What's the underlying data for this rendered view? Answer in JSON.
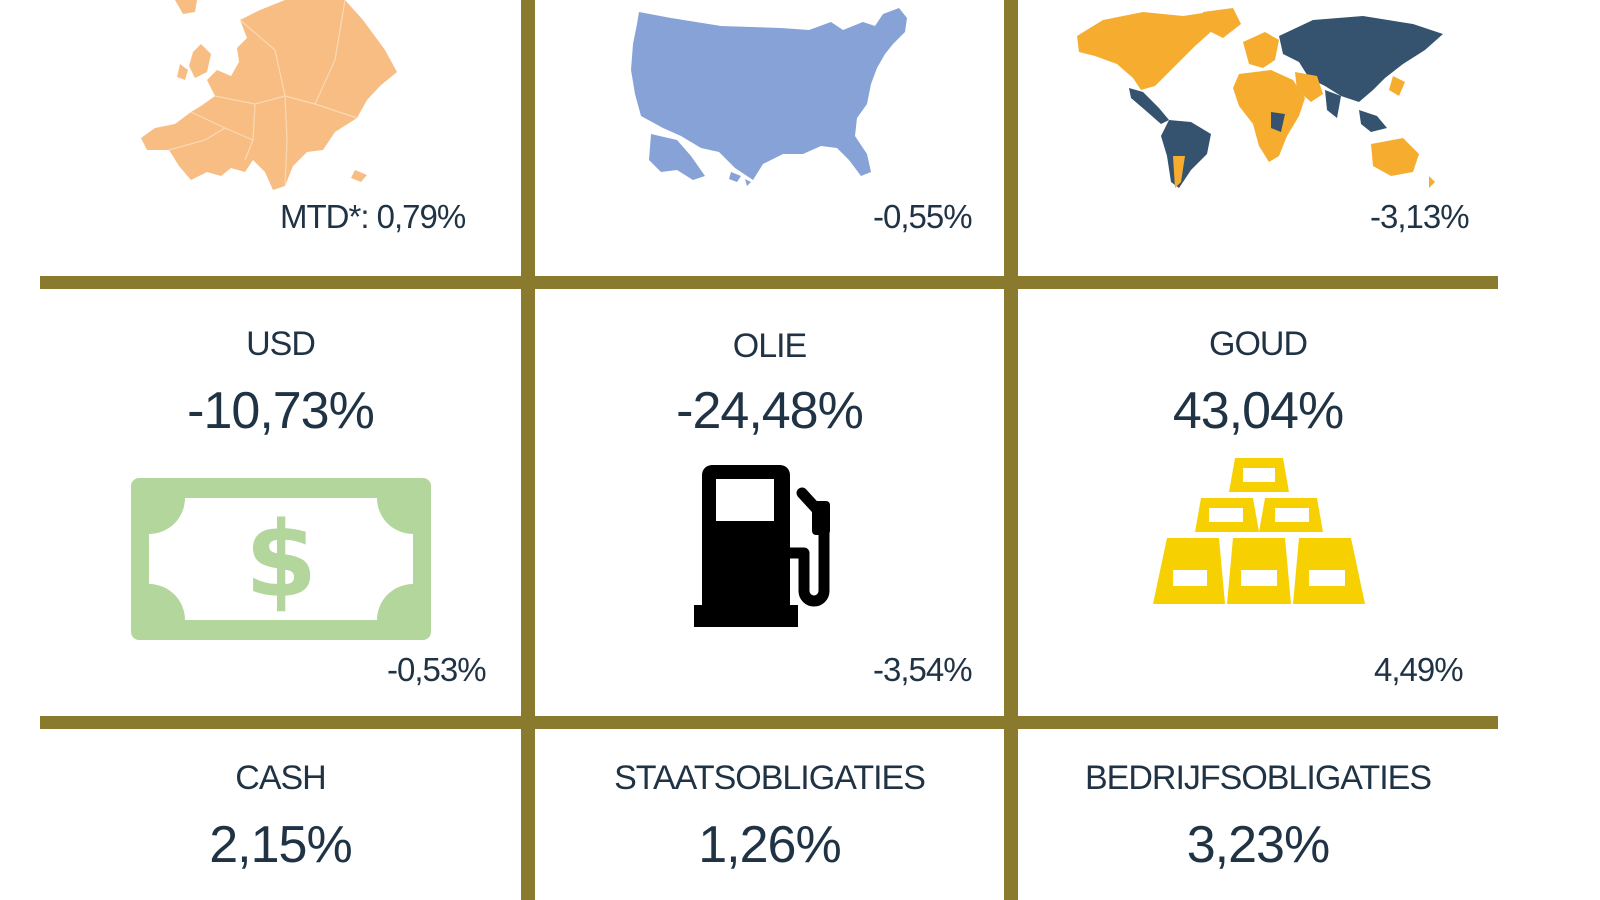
{
  "regions": [
    {
      "name": "europe",
      "mtd": "MTD*: 0,79%"
    },
    {
      "name": "usa",
      "mtd": "-0,55%"
    },
    {
      "name": "world",
      "mtd": "-3,13%"
    }
  ],
  "assets": [
    {
      "title": "USD",
      "value": "-10,73%",
      "mtd": "-0,53%"
    },
    {
      "title": "OLIE",
      "value": "-24,48%",
      "mtd": "-3,54%"
    },
    {
      "title": "GOUD",
      "value": "43,04%",
      "mtd": "4,49%"
    }
  ],
  "bonds": [
    {
      "title": "CASH",
      "value": "2,15%"
    },
    {
      "title": "STAATSOBLIGATIES",
      "value": "1,26%"
    },
    {
      "title": "BEDRIJFSOBLIGATIES",
      "value": "3,23%"
    }
  ],
  "icons": {
    "europe": "europe-map-icon",
    "usa": "usa-map-icon",
    "world": "world-map-icon",
    "usd": "dollar-bill-icon",
    "oil": "fuel-pump-icon",
    "gold": "gold-bars-icon"
  },
  "colors": {
    "grid": "#8a7a2e",
    "text": "#1f3345",
    "europe": "#f7bd83",
    "usa": "#86a2d6",
    "world_land": "#f6ac2e",
    "world_dark": "#35536e",
    "dollar": "#b3d69d",
    "oil": "#000000",
    "gold": "#f6d000"
  }
}
